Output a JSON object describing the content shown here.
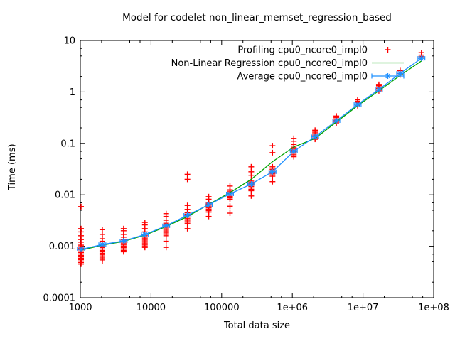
{
  "title": "Model for codelet non_linear_memset_regression_based",
  "axes": {
    "x": {
      "label": "Total data size",
      "scale": "log",
      "range": [
        1000,
        100000000
      ],
      "ticks": [
        {
          "v": 1000,
          "label": "1000"
        },
        {
          "v": 10000,
          "label": "10000"
        },
        {
          "v": 100000,
          "label": "100000"
        },
        {
          "v": 1000000,
          "label": "1e+06"
        },
        {
          "v": 10000000,
          "label": "1e+07"
        },
        {
          "v": 100000000,
          "label": "1e+08"
        }
      ],
      "minor_multipliers": [
        2,
        5,
        7
      ]
    },
    "y": {
      "label": "Time (ms)",
      "scale": "log",
      "range": [
        0.0001,
        10
      ],
      "ticks": [
        {
          "v": 0.0001,
          "label": "0.0001"
        },
        {
          "v": 0.001,
          "label": "0.001"
        },
        {
          "v": 0.01,
          "label": "0.01"
        },
        {
          "v": 0.1,
          "label": "0.1"
        },
        {
          "v": 1,
          "label": "1"
        },
        {
          "v": 10,
          "label": "10"
        }
      ],
      "minor_multipliers": [
        2,
        5,
        7
      ]
    }
  },
  "legend": [
    {
      "label": "Profiling cpu0_ncore0_impl0",
      "marker": "plus",
      "color": "#ff0000"
    },
    {
      "label": "Non-Linear Regression cpu0_ncore0_impl0",
      "marker": "line",
      "color": "#00a400"
    },
    {
      "label": "Average cpu0_ncore0_impl0",
      "marker": "xerrorbar-asterisk",
      "color": "#1e90ff"
    }
  ],
  "chart_data": {
    "type": "scatter",
    "title": "Model for codelet non_linear_memset_regression_based",
    "xlabel": "Total data size",
    "ylabel": "Time (ms)",
    "x_scale": "log",
    "y_scale": "log",
    "xlim": [
      1000,
      100000000
    ],
    "ylim": [
      0.0001,
      10
    ],
    "grid": false,
    "legend_position": "top-right-inside",
    "series": [
      {
        "name": "Profiling cpu0_ncore0_impl0",
        "type": "scatter",
        "marker": "plus",
        "color": "#ff0000",
        "clusters": [
          {
            "x": 1024,
            "block": [
              0.00045,
              0.00105
            ],
            "points": [
              0.0012,
              0.00135,
              0.0016,
              0.0019,
              0.0022,
              0.0059
            ]
          },
          {
            "x": 2048,
            "block": [
              0.00052,
              0.00108
            ],
            "points": [
              0.00125,
              0.0014,
              0.0017,
              0.0021
            ]
          },
          {
            "x": 4096,
            "block": [
              0.00078,
              0.00135
            ],
            "points": [
              0.0015,
              0.0017,
              0.002,
              0.0022
            ]
          },
          {
            "x": 8192,
            "block": [
              0.00095,
              0.0016
            ],
            "points": [
              0.0019,
              0.0022,
              0.0026,
              0.0029
            ]
          },
          {
            "x": 16384,
            "block": [
              0.0016,
              0.0028
            ],
            "points": [
              0.0032,
              0.0038,
              0.0043,
              0.00125,
              0.00095
            ]
          },
          {
            "x": 32768,
            "block": [
              0.0028,
              0.0045
            ],
            "points": [
              0.0052,
              0.0062,
              0.02,
              0.025,
              0.0022
            ]
          },
          {
            "x": 65536,
            "block": [
              0.0046,
              0.0071
            ],
            "points": [
              0.0082,
              0.0092,
              0.0038
            ]
          },
          {
            "x": 131072,
            "block": [
              0.0082,
              0.0125
            ],
            "points": [
              0.0148,
              0.006,
              0.0044
            ]
          },
          {
            "x": 262144,
            "block": [
              0.012,
              0.019
            ],
            "points": [
              0.024,
              0.028,
              0.035,
              0.0095
            ]
          },
          {
            "x": 524288,
            "block": [
              0.023,
              0.035
            ],
            "points": [
              0.066,
              0.09,
              0.018
            ]
          },
          {
            "x": 1048576,
            "block": [
              0.06,
              0.088
            ],
            "points": [
              0.095,
              0.11,
              0.125,
              0.055
            ]
          },
          {
            "x": 2097152,
            "block": [
              0.12,
              0.165
            ],
            "points": [
              0.18
            ]
          },
          {
            "x": 4194304,
            "block": [
              0.25,
              0.34
            ],
            "points": []
          },
          {
            "x": 8388608,
            "block": [
              0.54,
              0.7
            ],
            "points": []
          },
          {
            "x": 16777216,
            "block": [
              1.05,
              1.4
            ],
            "points": []
          },
          {
            "x": 33554432,
            "block": [
              2.15,
              2.6
            ],
            "points": []
          },
          {
            "x": 67108864,
            "block": [
              4.6,
              5.2
            ],
            "points": [
              5.8
            ]
          }
        ]
      },
      {
        "name": "Non-Linear Regression cpu0_ncore0_impl0",
        "type": "line",
        "color": "#00a400",
        "x": [
          1024,
          2048,
          4096,
          8192,
          16384,
          32768,
          65536,
          131072,
          262144,
          524288,
          1048576,
          2097152,
          4194304,
          8388608,
          16777216,
          33554432,
          67108864
        ],
        "y": [
          0.00084,
          0.00105,
          0.00124,
          0.00164,
          0.00241,
          0.00377,
          0.0065,
          0.011,
          0.02,
          0.044,
          0.085,
          0.125,
          0.26,
          0.54,
          1.05,
          2.1,
          4.0
        ]
      },
      {
        "name": "Average cpu0_ncore0_impl0",
        "type": "linespoints",
        "marker": "asterisk",
        "error_bars": "x",
        "xerr_factor": 1.12,
        "color": "#1e90ff",
        "x": [
          1024,
          2048,
          4096,
          8192,
          16384,
          32768,
          65536,
          131072,
          262144,
          524288,
          1048576,
          2097152,
          4194304,
          8388608,
          16777216,
          33554432,
          67108864
        ],
        "y": [
          0.00087,
          0.00108,
          0.00127,
          0.00169,
          0.0025,
          0.004,
          0.0064,
          0.0104,
          0.0162,
          0.028,
          0.07,
          0.135,
          0.275,
          0.57,
          1.11,
          2.3,
          4.5
        ]
      }
    ]
  }
}
